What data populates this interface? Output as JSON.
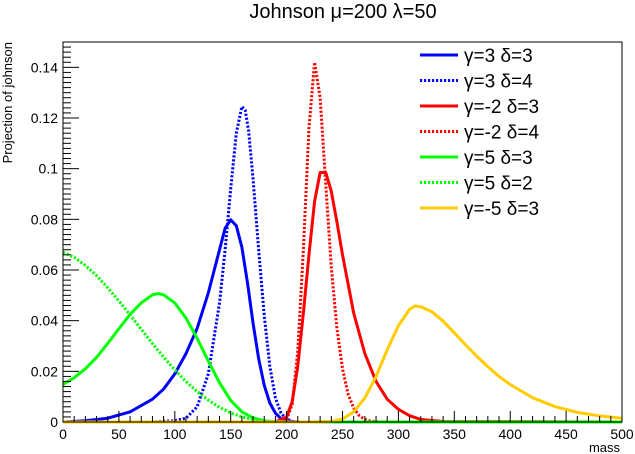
{
  "chart_data": {
    "type": "line",
    "title": "Johnson μ=200 λ=50",
    "xlabel": "mass",
    "ylabel": "Projection of johnson",
    "xlim": [
      0,
      500
    ],
    "ylim": [
      0,
      0.15
    ],
    "x_ticks": [
      "0",
      "50",
      "100",
      "150",
      "200",
      "250",
      "300",
      "350",
      "400",
      "450",
      "500"
    ],
    "y_ticks": [
      "0",
      "0.02",
      "0.04",
      "0.06",
      "0.08",
      "0.1",
      "0.12",
      "0.14"
    ],
    "legend_position": "top-right",
    "grid": false,
    "series": [
      {
        "name": "γ=3 δ=3",
        "color": "#0000ff",
        "style": "solid",
        "x": [
          0,
          20,
          40,
          60,
          80,
          90,
          100,
          110,
          120,
          130,
          140,
          145,
          150,
          155,
          160,
          165,
          170,
          175,
          180,
          185,
          190,
          195,
          200,
          210,
          230,
          500
        ],
        "y": [
          0.0,
          0.0005,
          0.0015,
          0.004,
          0.009,
          0.013,
          0.019,
          0.027,
          0.037,
          0.051,
          0.068,
          0.0765,
          0.0798,
          0.0775,
          0.069,
          0.055,
          0.039,
          0.025,
          0.0145,
          0.0075,
          0.0035,
          0.0013,
          0.0004,
          0.0,
          0.0,
          0.0
        ]
      },
      {
        "name": "γ=3 δ=4",
        "color": "#0000ff",
        "style": "dotted",
        "x": [
          0,
          80,
          100,
          110,
          120,
          130,
          140,
          145,
          150,
          155,
          160,
          163,
          166,
          170,
          175,
          180,
          185,
          190,
          195,
          200,
          205,
          210,
          500
        ],
        "y": [
          0.0,
          0.0,
          0.0005,
          0.0015,
          0.006,
          0.019,
          0.047,
          0.068,
          0.092,
          0.114,
          0.1245,
          0.123,
          0.115,
          0.096,
          0.068,
          0.042,
          0.022,
          0.0095,
          0.0035,
          0.0011,
          0.0003,
          0.0,
          0.0
        ]
      },
      {
        "name": "γ=-2 δ=3",
        "color": "#ff0000",
        "style": "solid",
        "x": [
          0,
          190,
          200,
          205,
          210,
          215,
          220,
          225,
          230,
          235,
          240,
          245,
          250,
          260,
          270,
          280,
          290,
          300,
          310,
          320,
          340,
          500
        ],
        "y": [
          0.0,
          0.0,
          0.002,
          0.008,
          0.022,
          0.043,
          0.066,
          0.087,
          0.0985,
          0.0985,
          0.091,
          0.079,
          0.066,
          0.043,
          0.027,
          0.016,
          0.009,
          0.005,
          0.0025,
          0.001,
          0.0002,
          0.0
        ]
      },
      {
        "name": "γ=-2 δ=4",
        "color": "#ff0000",
        "style": "dotted",
        "x": [
          0,
          195,
          200,
          205,
          210,
          215,
          220,
          225,
          230,
          235,
          240,
          245,
          250,
          255,
          260,
          265,
          270,
          275,
          280,
          290,
          500
        ],
        "y": [
          0.0,
          0.0,
          0.001,
          0.007,
          0.028,
          0.068,
          0.116,
          0.142,
          0.128,
          0.094,
          0.061,
          0.037,
          0.021,
          0.011,
          0.0055,
          0.0025,
          0.001,
          0.0004,
          0.0001,
          0.0,
          0.0
        ]
      },
      {
        "name": "γ=5 δ=3",
        "color": "#00ff00",
        "style": "solid",
        "x": [
          0,
          10,
          20,
          30,
          40,
          50,
          60,
          70,
          80,
          85,
          90,
          100,
          110,
          120,
          130,
          140,
          150,
          160,
          170,
          180,
          190,
          200,
          500
        ],
        "y": [
          0.0148,
          0.0175,
          0.021,
          0.0255,
          0.031,
          0.0368,
          0.0425,
          0.047,
          0.0502,
          0.0507,
          0.0502,
          0.047,
          0.041,
          0.033,
          0.024,
          0.0155,
          0.0085,
          0.004,
          0.0016,
          0.0005,
          0.0001,
          0.0,
          0.0
        ]
      },
      {
        "name": "γ=5 δ=2",
        "color": "#00ff00",
        "style": "dotted",
        "x": [
          0,
          10,
          20,
          30,
          40,
          50,
          60,
          70,
          80,
          90,
          100,
          110,
          120,
          130,
          140,
          150,
          160,
          170,
          180,
          190,
          200,
          220,
          500
        ],
        "y": [
          0.067,
          0.065,
          0.0618,
          0.0578,
          0.053,
          0.0478,
          0.0422,
          0.0366,
          0.031,
          0.0256,
          0.0206,
          0.016,
          0.012,
          0.0086,
          0.0058,
          0.0036,
          0.002,
          0.001,
          0.0004,
          0.0001,
          0.0,
          0.0,
          0.0
        ]
      },
      {
        "name": "γ=-5 δ=3",
        "color": "#ffcc00",
        "style": "solid",
        "x": [
          0,
          220,
          240,
          250,
          260,
          270,
          280,
          290,
          300,
          310,
          315,
          320,
          330,
          340,
          350,
          360,
          370,
          380,
          390,
          400,
          420,
          440,
          460,
          480,
          500
        ],
        "y": [
          0.0,
          0.0,
          0.0002,
          0.0012,
          0.004,
          0.0095,
          0.018,
          0.0285,
          0.038,
          0.0445,
          0.0458,
          0.0455,
          0.0435,
          0.0398,
          0.0352,
          0.0305,
          0.026,
          0.0218,
          0.018,
          0.0148,
          0.0096,
          0.0061,
          0.0038,
          0.0024,
          0.0015
        ]
      }
    ]
  }
}
